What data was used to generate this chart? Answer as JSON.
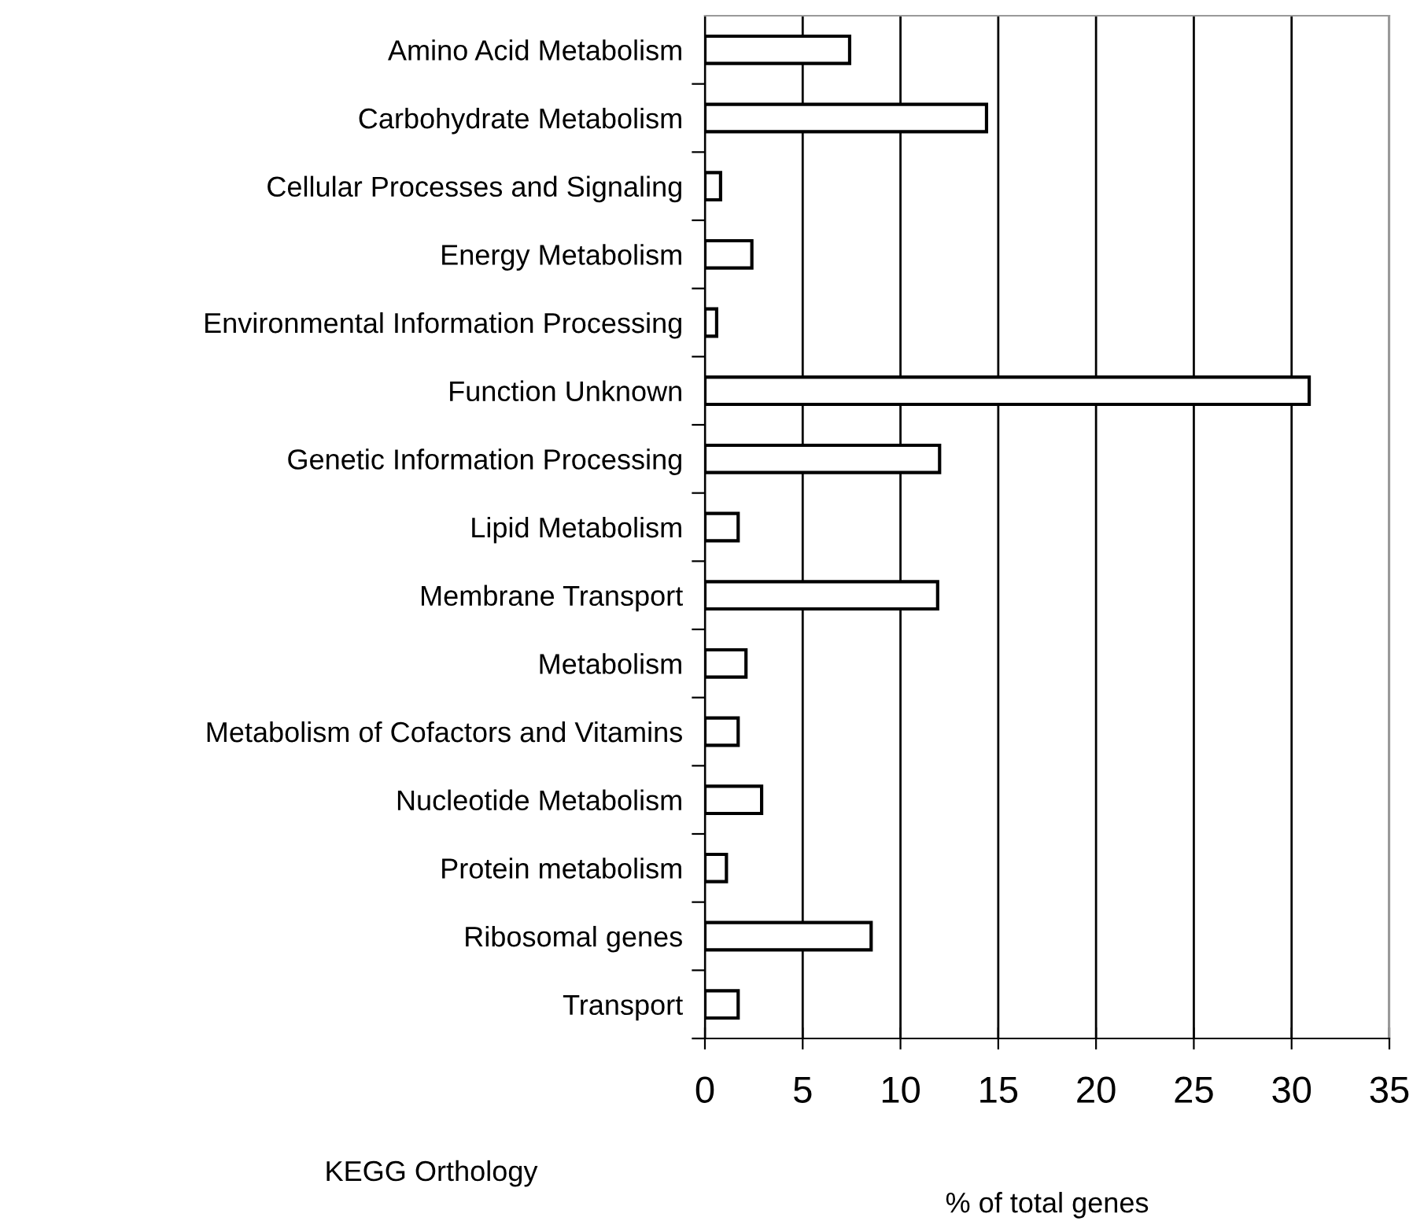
{
  "chart_data": {
    "type": "bar",
    "orientation": "horizontal",
    "categories": [
      "Amino Acid Metabolism",
      "Carbohydrate Metabolism",
      "Cellular Processes and Signaling",
      "Energy Metabolism",
      "Environmental Information Processing",
      "Function Unknown",
      "Genetic Information Processing",
      "Lipid Metabolism",
      "Membrane Transport",
      "Metabolism",
      "Metabolism of Cofactors and Vitamins",
      "Nucleotide Metabolism",
      "Protein metabolism",
      "Ribosomal genes",
      "Transport"
    ],
    "values": [
      7.4,
      14.4,
      0.8,
      2.4,
      0.6,
      30.9,
      12.0,
      1.7,
      11.9,
      2.1,
      1.7,
      2.9,
      1.1,
      8.5,
      1.7
    ],
    "color": "#ffffff",
    "xlim": [
      0,
      35
    ],
    "xticks": [
      0,
      5,
      10,
      15,
      20,
      25,
      30,
      35
    ],
    "grid": "x",
    "legend": false,
    "xlabel": "% of total genes",
    "ylabel": "KEGG Orthology"
  }
}
